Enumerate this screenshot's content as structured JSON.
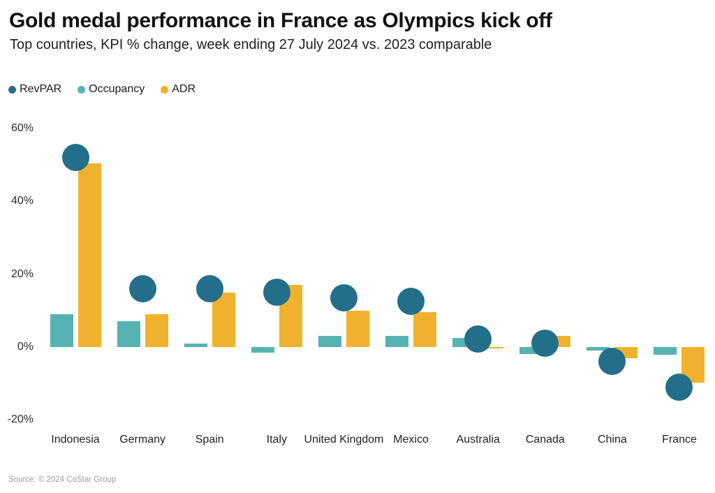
{
  "header": {
    "title": "Gold medal performance in France as Olympics kick off",
    "subtitle": "Top countries, KPI % change, week ending 27 July 2024 vs. 2023 comparable"
  },
  "legend": [
    {
      "label": "RevPAR",
      "color": "#236f8a",
      "shape": "circle"
    },
    {
      "label": "Occupancy",
      "color": "#56b3b1",
      "shape": "circle"
    },
    {
      "label": "ADR",
      "color": "#f0b22e",
      "shape": "circle"
    }
  ],
  "colors": {
    "revpar": "#236f8a",
    "occupancy": "#56b3b1",
    "adr": "#f0b22e",
    "background": "#ffffff",
    "text": "#1f1f1f",
    "muted": "#9b9b9b"
  },
  "chart_data": {
    "type": "bar",
    "subtype": "grouped-bars-with-dot-overlay",
    "title": "Gold medal performance in France as Olympics kick off",
    "subtitle": "Top countries, KPI % change, week ending 27 July 2024 vs. 2023 comparable",
    "unit": "%",
    "categories": [
      "Indonesia",
      "Germany",
      "Spain",
      "Italy",
      "United Kingdom",
      "Mexico",
      "Australia",
      "Canada",
      "China",
      "France"
    ],
    "series": [
      {
        "name": "RevPAR",
        "mark": "dot",
        "color": "#236f8a",
        "values": [
          52,
          16,
          16,
          15,
          13.5,
          12.5,
          2.3,
          1,
          -4,
          -11
        ]
      },
      {
        "name": "Occupancy",
        "mark": "bar",
        "slot": 0,
        "color": "#56b3b1",
        "values": [
          9,
          7,
          1,
          -1.5,
          3,
          3,
          2.5,
          -2,
          -1,
          -2.2
        ]
      },
      {
        "name": "ADR",
        "mark": "bar",
        "slot": 1,
        "color": "#f0b22e",
        "values": [
          50.5,
          9,
          15,
          17,
          10,
          9.5,
          -0.3,
          3,
          -3,
          -9.7
        ]
      }
    ],
    "xlabel": "",
    "ylabel": "",
    "ylim": [
      -25,
      63
    ],
    "yticks": [
      {
        "value": 60,
        "label": "60%"
      },
      {
        "value": 40,
        "label": "40%"
      },
      {
        "value": 20,
        "label": "20%"
      },
      {
        "value": 0,
        "label": "0%"
      },
      {
        "value": -20,
        "label": "-20%"
      }
    ],
    "grid": false,
    "legend_position": "top-left"
  },
  "footer": {
    "source": "Source: © 2024 CoStar Group"
  }
}
